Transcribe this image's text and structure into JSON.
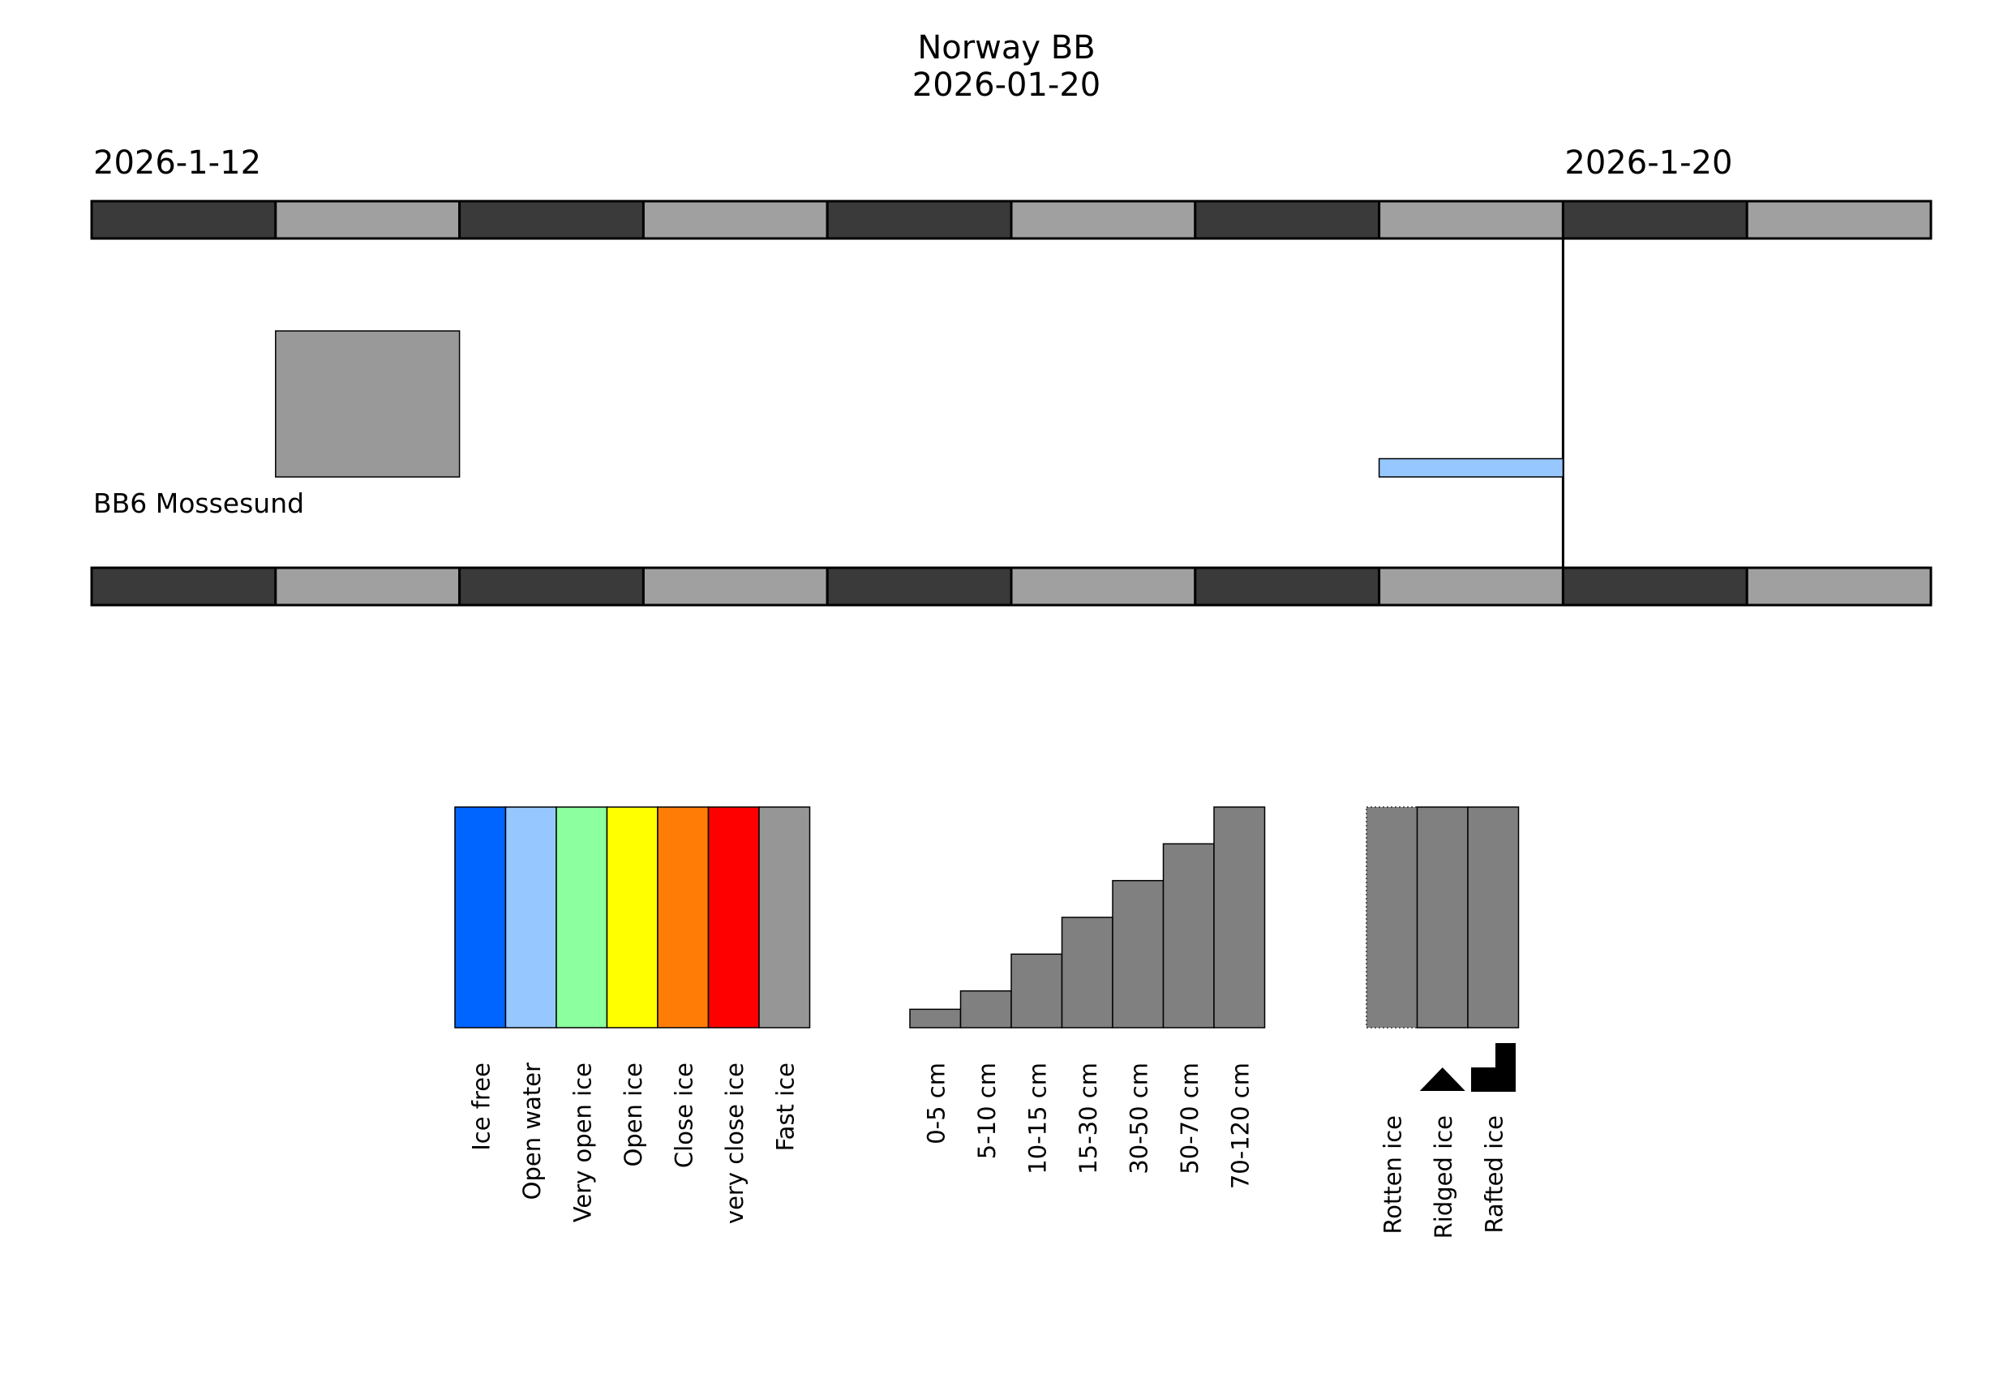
{
  "chart_data": {
    "type": "ice-chart timeline",
    "title": "Norway BB",
    "subtitle": "2026-01-20",
    "date_labels": [
      {
        "day_index": 0,
        "text": "2026-1-12"
      },
      {
        "day_index": 8,
        "text": "2026-1-20"
      }
    ],
    "days": [
      "2026-1-12",
      "2026-1-13",
      "2026-1-14",
      "2026-1-15",
      "2026-1-16",
      "2026-1-17",
      "2026-1-18",
      "2026-1-19",
      "2026-1-20",
      "2026-1-21"
    ],
    "current_day_index": 8,
    "stations": [
      {
        "name": "BB6 Mossesund",
        "observations": [
          {
            "day_index": 1,
            "type": "Fast ice",
            "thickness": "30-50 cm",
            "color": "#999999"
          },
          {
            "day_index": 7,
            "type": "Open water",
            "thickness": "0-5 cm",
            "color": "#96c8ff"
          }
        ]
      }
    ],
    "legends": {
      "ice_type": [
        {
          "label": "Ice free",
          "color": "#0064ff"
        },
        {
          "label": "Open water",
          "color": "#96c8ff"
        },
        {
          "label": "Very open ice",
          "color": "#8cff9f"
        },
        {
          "label": "Open ice",
          "color": "#ffff00"
        },
        {
          "label": "Close ice",
          "color": "#ff7d07"
        },
        {
          "label": "very close ice",
          "color": "#ff0000"
        },
        {
          "label": "Fast ice",
          "color": "#969696"
        }
      ],
      "thickness": [
        {
          "label": "0-5 cm",
          "level": 1
        },
        {
          "label": "5-10 cm",
          "level": 2
        },
        {
          "label": "10-15 cm",
          "level": 4
        },
        {
          "label": "15-30 cm",
          "level": 6
        },
        {
          "label": "30-50 cm",
          "level": 8
        },
        {
          "label": "50-70 cm",
          "level": 10
        },
        {
          "label": "70-120 cm",
          "level": 12
        }
      ],
      "thickness_max_level": 12,
      "thickness_color": "#808080",
      "condition": [
        {
          "label": "Rotten ice",
          "symbol": "dotted-border",
          "color": "#808080"
        },
        {
          "label": "Ridged ice",
          "symbol": "ridge-triangle-icon",
          "color": "#808080"
        },
        {
          "label": "Rafted ice",
          "symbol": "raft-step-icon",
          "color": "#808080"
        }
      ]
    },
    "band_colors": {
      "dark": "#3a3a3a",
      "light": "#a0a0a0"
    }
  }
}
